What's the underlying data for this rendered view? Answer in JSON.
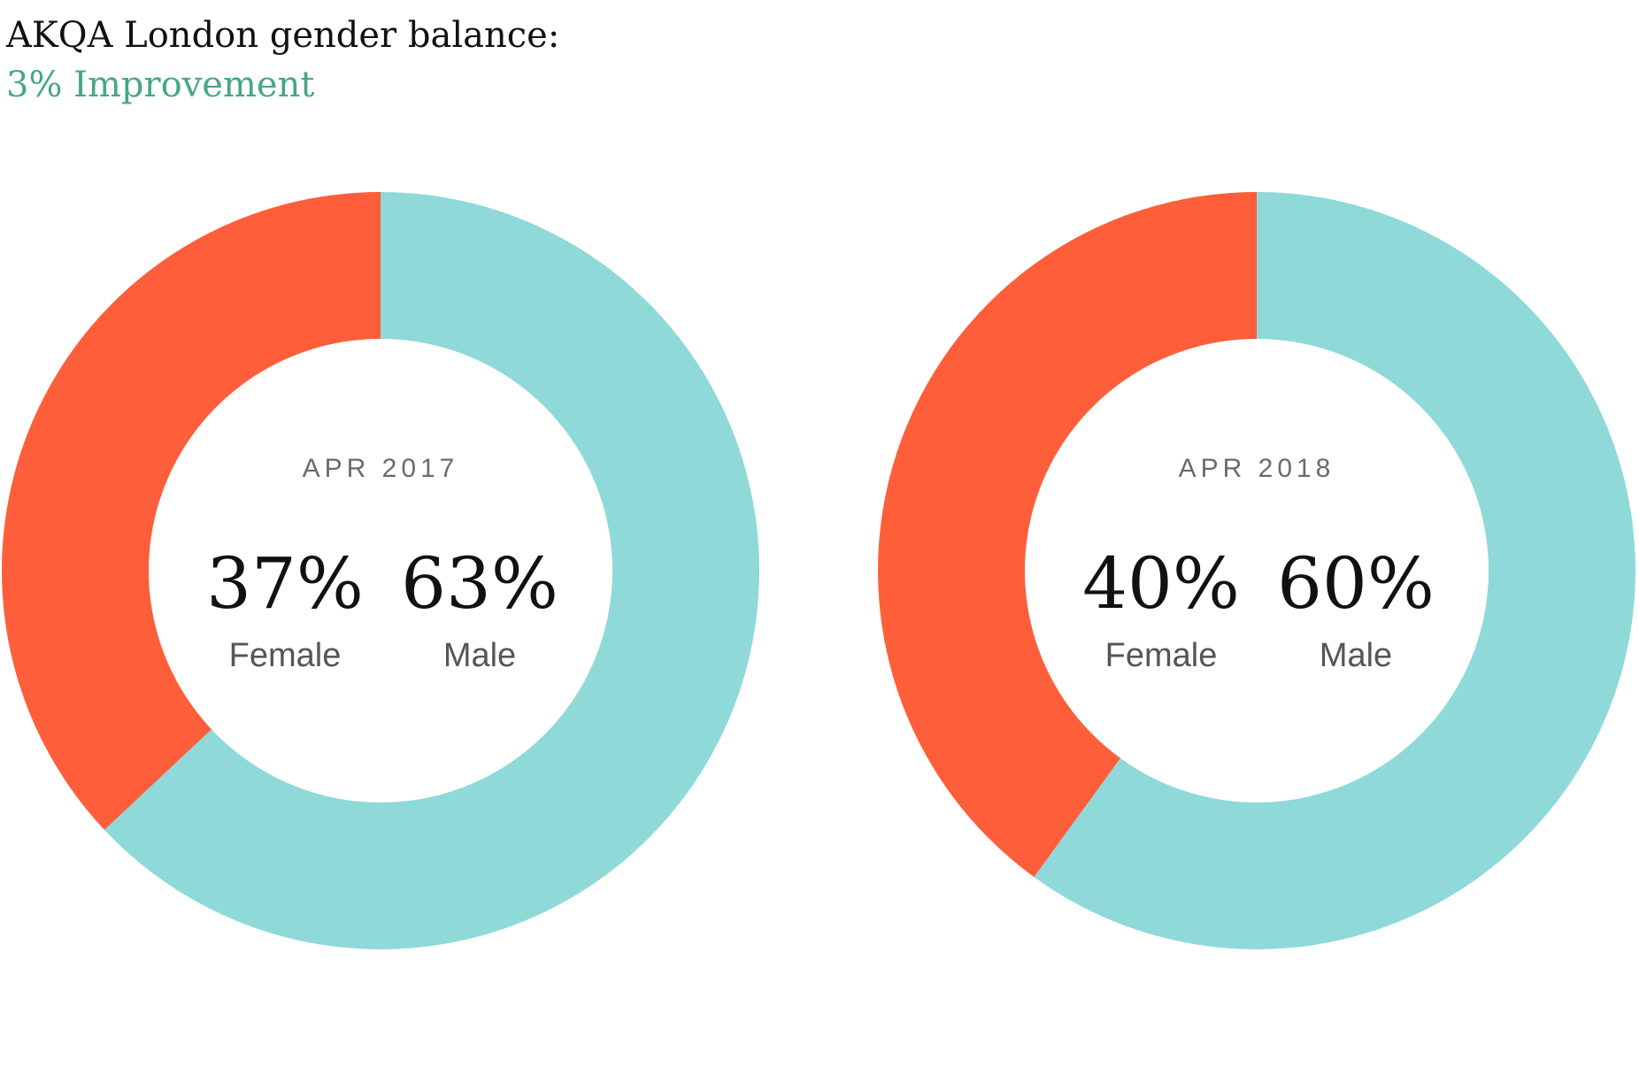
{
  "header": {
    "title": "AKQA London gender balance:",
    "subtitle": "3% Improvement"
  },
  "colors": {
    "female": "#ff5e3a",
    "male": "#8fd9d9",
    "accent": "#47a68a"
  },
  "chart_data": [
    {
      "type": "pie",
      "variant": "donut",
      "label": "APR 2017",
      "slices": [
        {
          "name": "Female",
          "value": 37,
          "display": "37%"
        },
        {
          "name": "Male",
          "value": 63,
          "display": "63%"
        }
      ]
    },
    {
      "type": "pie",
      "variant": "donut",
      "label": "APR 2018",
      "slices": [
        {
          "name": "Female",
          "value": 40,
          "display": "40%"
        },
        {
          "name": "Male",
          "value": 60,
          "display": "60%"
        }
      ]
    }
  ]
}
